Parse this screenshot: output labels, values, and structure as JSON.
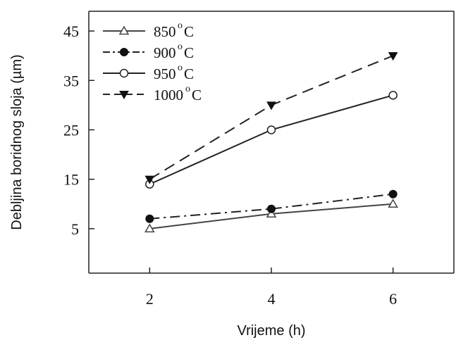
{
  "chart_data": {
    "type": "line",
    "title": "",
    "xlabel": "Vrijeme (h)",
    "ylabel": "Debljina boridnog sloja (µm)",
    "x": [
      2,
      4,
      6
    ],
    "xticks": [
      2,
      4,
      6
    ],
    "yticks": [
      5,
      15,
      25,
      35,
      45
    ],
    "xlim": [
      1,
      7
    ],
    "ylim": [
      -4,
      49
    ],
    "grid": false,
    "legend_position": "top-left",
    "series": [
      {
        "name": "850",
        "name_sup": "o",
        "name_unit": "C",
        "values": [
          5,
          8,
          10
        ],
        "marker": "open-triangle",
        "line_style": "solid",
        "color": "#444444"
      },
      {
        "name": "900",
        "name_sup": "o",
        "name_unit": "C",
        "values": [
          7,
          9,
          12
        ],
        "marker": "filled-circle",
        "line_style": "dash-dot",
        "color": "#222222"
      },
      {
        "name": "950",
        "name_sup": "o",
        "name_unit": "C",
        "values": [
          14,
          25,
          32
        ],
        "marker": "open-circle",
        "line_style": "solid",
        "color": "#222222"
      },
      {
        "name": "1000",
        "name_sup": "o",
        "name_unit": "C",
        "values": [
          15,
          30,
          40
        ],
        "marker": "filled-triangle-down",
        "line_style": "dashed",
        "color": "#222222"
      }
    ]
  }
}
